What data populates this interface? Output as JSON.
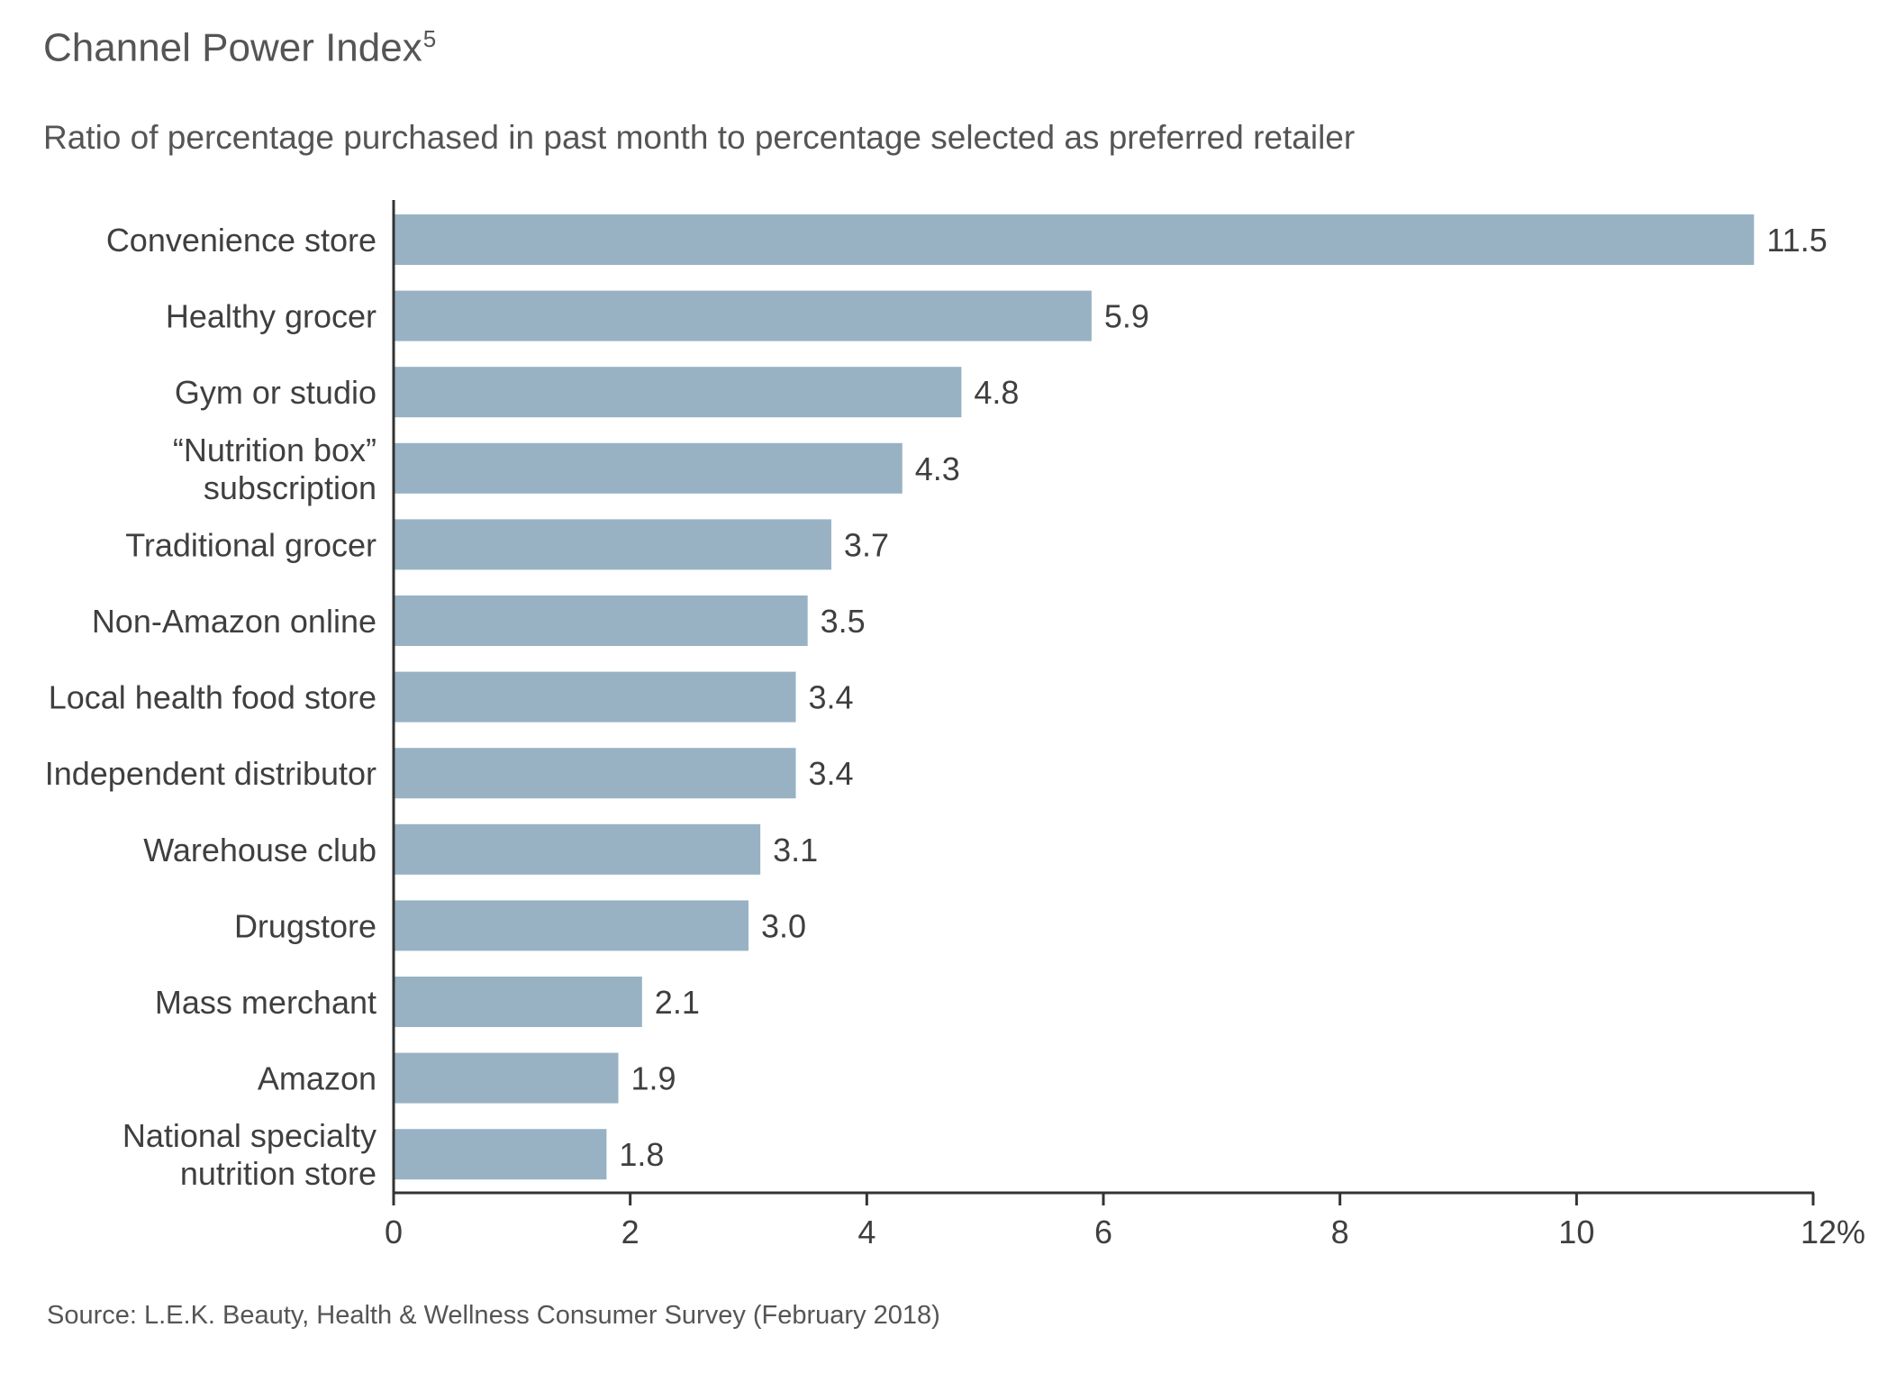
{
  "title": "Channel Power Index",
  "title_superscript": "5",
  "subtitle": "Ratio of percentage purchased in past month to percentage selected as preferred retailer",
  "source": "Source: L.E.K. Beauty, Health & Wellness Consumer Survey (February 2018)",
  "chart_data": {
    "type": "bar",
    "orientation": "horizontal",
    "categories": [
      [
        "Convenience store"
      ],
      [
        "Healthy grocer"
      ],
      [
        "Gym or studio"
      ],
      [
        "“Nutrition box”",
        "subscription"
      ],
      [
        "Traditional grocer"
      ],
      [
        "Non-Amazon online"
      ],
      [
        "Local health food store"
      ],
      [
        "Independent distributor"
      ],
      [
        "Warehouse club"
      ],
      [
        "Drugstore"
      ],
      [
        "Mass merchant"
      ],
      [
        "Amazon"
      ],
      [
        "National specialty",
        "nutrition store"
      ]
    ],
    "values": [
      11.5,
      5.9,
      4.8,
      4.3,
      3.7,
      3.5,
      3.4,
      3.4,
      3.1,
      3.0,
      2.1,
      1.9,
      1.8
    ],
    "value_labels": [
      "11.5",
      "5.9",
      "4.8",
      "4.3",
      "3.7",
      "3.5",
      "3.4",
      "3.4",
      "3.1",
      "3.0",
      "2.1",
      "1.9",
      "1.8"
    ],
    "xlim": [
      0,
      12
    ],
    "xticks": [
      0,
      2,
      4,
      6,
      8,
      10,
      12
    ],
    "xtick_labels": [
      "0",
      "2",
      "4",
      "6",
      "8",
      "10",
      "12%"
    ],
    "grid": false,
    "legend": "none",
    "bar_color": "#98b2c4",
    "axis_color": "#333333"
  }
}
